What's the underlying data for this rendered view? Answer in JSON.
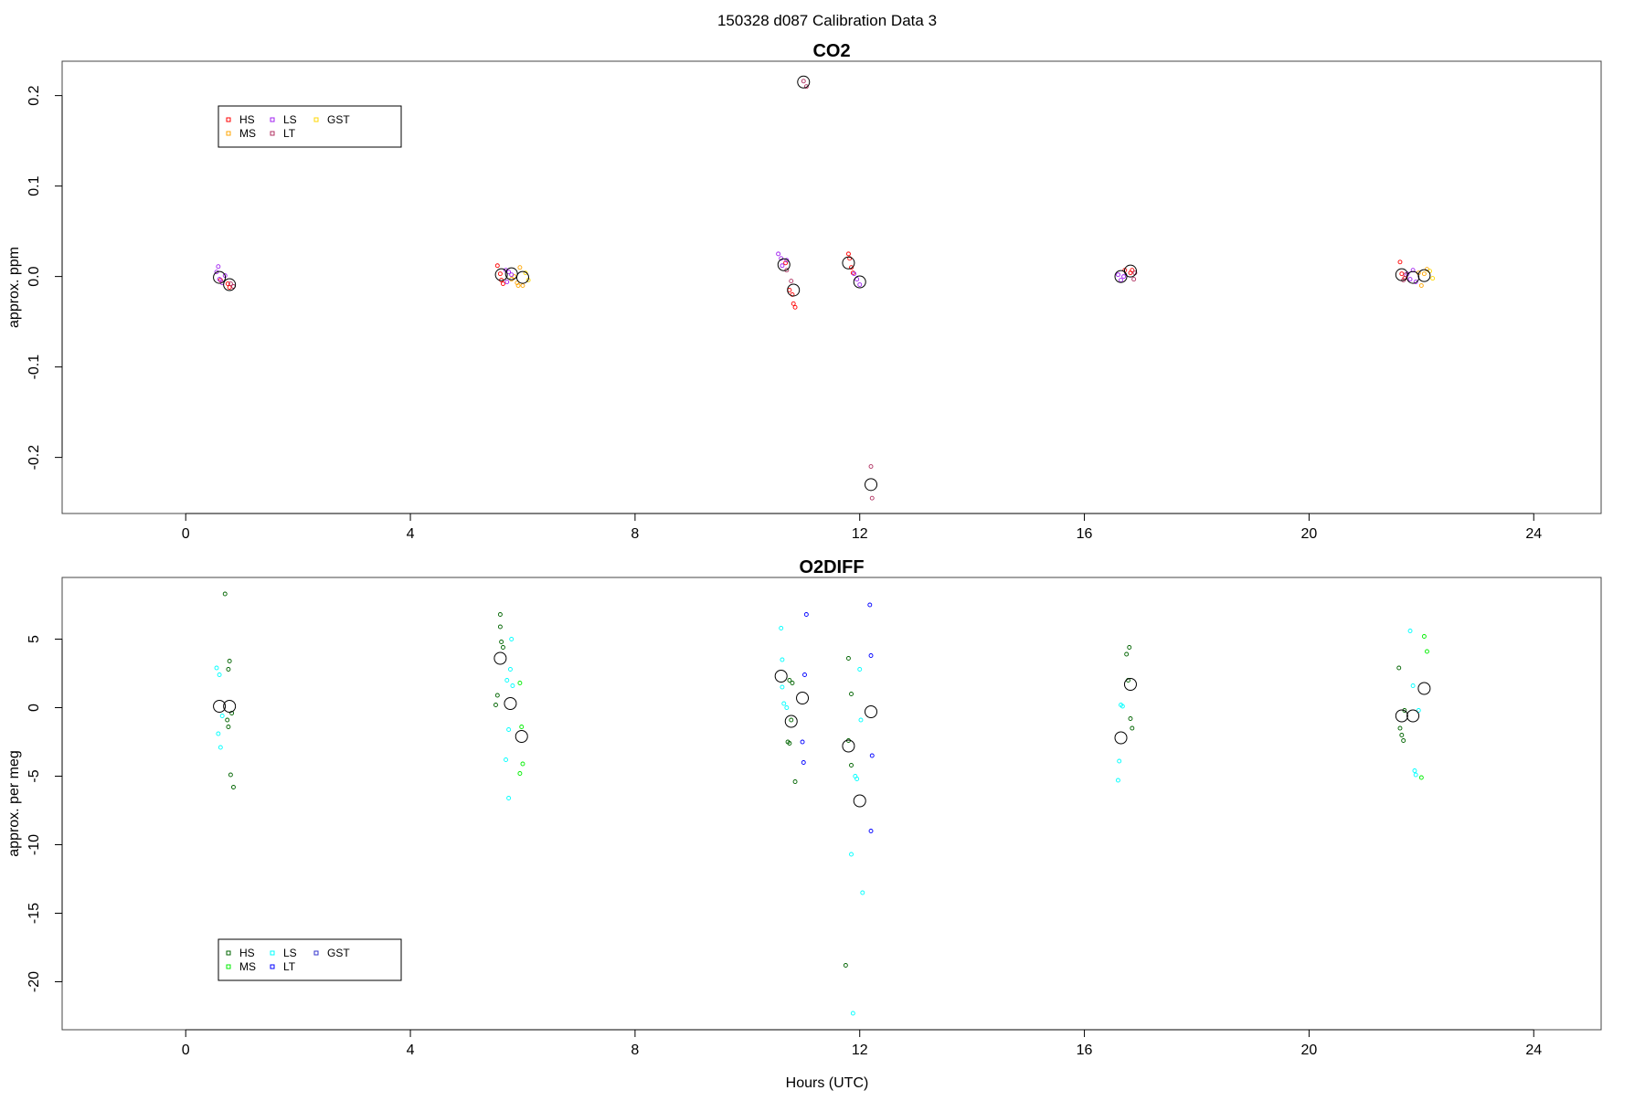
{
  "figure": {
    "suptitle": "150328   d087   Calibration Data 3",
    "xlabel": "Hours (UTC)"
  },
  "chart_data": [
    {
      "type": "scatter",
      "title": "CO2",
      "xlabel": "",
      "ylabel": "approx. ppm",
      "xlim": [
        -2.2,
        25.2
      ],
      "ylim": [
        -0.262,
        0.238
      ],
      "xticks": [
        0,
        4,
        8,
        12,
        16,
        20,
        24
      ],
      "yticks": [
        -0.2,
        -0.1,
        0.0,
        0.1,
        0.2
      ],
      "ytick_labels": [
        "-0.2",
        "-0.1",
        "0.0",
        "0.1",
        "0.2"
      ],
      "grid": false,
      "legend": {
        "placement": "top-left",
        "entries": [
          {
            "label": "HS",
            "color": "#ff0000"
          },
          {
            "label": "MS",
            "color": "#ffa500"
          },
          {
            "label": "LS",
            "color": "#a020f0"
          },
          {
            "label": "LT",
            "color": "#b03060"
          },
          {
            "label": "GST",
            "color": "#ffd700"
          }
        ]
      },
      "series": [
        {
          "name": "HS",
          "color": "#ff0000",
          "points": [
            [
              0.62,
              -0.004
            ],
            [
              0.75,
              -0.008
            ],
            [
              0.78,
              -0.012
            ],
            [
              5.55,
              0.012
            ],
            [
              5.6,
              0.003
            ],
            [
              5.62,
              -0.004
            ],
            [
              5.65,
              -0.008
            ],
            [
              10.75,
              -0.015
            ],
            [
              10.8,
              -0.02
            ],
            [
              10.82,
              -0.03
            ],
            [
              10.85,
              -0.034
            ],
            [
              10.68,
              0.015
            ],
            [
              11.8,
              0.025
            ],
            [
              11.82,
              0.02
            ],
            [
              11.85,
              0.01
            ],
            [
              11.88,
              0.004
            ],
            [
              16.72,
              0.007
            ],
            [
              16.82,
              0.004
            ],
            [
              16.85,
              0.007
            ],
            [
              21.62,
              0.016
            ],
            [
              21.65,
              0.003
            ],
            [
              21.7,
              -0.002
            ]
          ]
        },
        {
          "name": "MS",
          "color": "#ffa500",
          "points": [
            [
              5.8,
              -0.003
            ],
            [
              5.85,
              0.0
            ],
            [
              5.9,
              -0.007
            ],
            [
              5.95,
              0.01
            ],
            [
              6.0,
              -0.01
            ],
            [
              5.92,
              -0.01
            ],
            [
              22.0,
              -0.01
            ],
            [
              22.05,
              0.003
            ],
            [
              22.1,
              0.008
            ],
            [
              21.95,
              0.004
            ]
          ]
        },
        {
          "name": "LS",
          "color": "#a020f0",
          "points": [
            [
              0.55,
              0.005
            ],
            [
              0.58,
              0.011
            ],
            [
              0.6,
              -0.003
            ],
            [
              0.65,
              -0.007
            ],
            [
              0.7,
              0.001
            ],
            [
              5.7,
              0.007
            ],
            [
              5.75,
              0.005
            ],
            [
              5.8,
              0.002
            ],
            [
              5.72,
              -0.006
            ],
            [
              10.55,
              0.025
            ],
            [
              10.6,
              0.02
            ],
            [
              10.62,
              0.012
            ],
            [
              10.7,
              0.018
            ],
            [
              11.9,
              0.003
            ],
            [
              11.95,
              -0.003
            ],
            [
              12.0,
              -0.009
            ],
            [
              16.6,
              0.002
            ],
            [
              16.65,
              -0.004
            ],
            [
              16.7,
              0.0
            ],
            [
              21.75,
              0.003
            ],
            [
              21.8,
              -0.003
            ],
            [
              21.85,
              0.007
            ],
            [
              21.9,
              -0.006
            ]
          ]
        },
        {
          "name": "LT",
          "color": "#b03060",
          "points": [
            [
              0.8,
              -0.008
            ],
            [
              0.85,
              -0.011
            ],
            [
              10.7,
              0.007
            ],
            [
              10.78,
              -0.005
            ],
            [
              11.05,
              0.21
            ],
            [
              11.0,
              0.216
            ],
            [
              12.2,
              -0.21
            ],
            [
              12.22,
              -0.245
            ],
            [
              16.88,
              -0.003
            ],
            [
              16.9,
              0.004
            ],
            [
              21.68,
              -0.004
            ],
            [
              21.72,
              0.002
            ]
          ]
        },
        {
          "name": "GST",
          "color": "#ffd700",
          "points": [
            [
              6.05,
              0.004
            ],
            [
              6.1,
              -0.004
            ],
            [
              22.15,
              0.006
            ],
            [
              22.2,
              -0.002
            ]
          ]
        },
        {
          "name": "",
          "color": "#000000",
          "marker": "large",
          "points": [
            [
              0.6,
              -0.001
            ],
            [
              0.78,
              -0.009
            ],
            [
              5.62,
              0.002
            ],
            [
              5.8,
              0.003
            ],
            [
              6.0,
              -0.001
            ],
            [
              10.65,
              0.013
            ],
            [
              10.82,
              -0.015
            ],
            [
              11.0,
              0.215
            ],
            [
              11.8,
              0.015
            ],
            [
              12.0,
              -0.006
            ],
            [
              12.2,
              -0.23
            ],
            [
              16.65,
              0.0
            ],
            [
              16.82,
              0.006
            ],
            [
              21.65,
              0.002
            ],
            [
              21.85,
              -0.001
            ],
            [
              22.05,
              0.001
            ]
          ]
        }
      ]
    },
    {
      "type": "scatter",
      "title": "O2DIFF",
      "xlabel": "Hours (UTC)",
      "ylabel": "approx. per meg",
      "xlim": [
        -2.2,
        25.2
      ],
      "ylim": [
        -23.5,
        9.5
      ],
      "xticks": [
        0,
        4,
        8,
        12,
        16,
        20,
        24
      ],
      "yticks": [
        -20,
        -15,
        -10,
        -5,
        0,
        5
      ],
      "ytick_labels": [
        "-20",
        "-15",
        "-10",
        "-5",
        "0",
        "5"
      ],
      "grid": false,
      "legend": {
        "placement": "bottom-left",
        "entries": [
          {
            "label": "HS",
            "color": "#006400"
          },
          {
            "label": "MS",
            "color": "#00ee00"
          },
          {
            "label": "LS",
            "color": "#00ffff"
          },
          {
            "label": "LT",
            "color": "#0000ff"
          },
          {
            "label": "GST",
            "color": "#3333cc"
          }
        ]
      },
      "series": [
        {
          "name": "HS",
          "color": "#006400",
          "points": [
            [
              0.7,
              8.3
            ],
            [
              0.78,
              3.4
            ],
            [
              0.76,
              2.8
            ],
            [
              0.82,
              -0.4
            ],
            [
              0.74,
              -0.9
            ],
            [
              0.76,
              -1.4
            ],
            [
              0.8,
              -4.9
            ],
            [
              0.85,
              -5.8
            ],
            [
              5.6,
              6.8
            ],
            [
              5.6,
              5.9
            ],
            [
              5.62,
              4.8
            ],
            [
              5.65,
              4.4
            ],
            [
              5.55,
              0.9
            ],
            [
              5.52,
              0.2
            ],
            [
              10.75,
              2.0
            ],
            [
              10.8,
              1.8
            ],
            [
              10.72,
              -2.5
            ],
            [
              10.75,
              -2.6
            ],
            [
              10.85,
              -5.4
            ],
            [
              10.78,
              -0.9
            ],
            [
              11.75,
              -18.8
            ],
            [
              11.8,
              3.6
            ],
            [
              11.85,
              1.0
            ],
            [
              11.8,
              -2.4
            ],
            [
              11.85,
              -4.2
            ],
            [
              16.8,
              4.4
            ],
            [
              16.75,
              3.9
            ],
            [
              16.78,
              2.0
            ],
            [
              16.82,
              -0.8
            ],
            [
              16.85,
              -1.5
            ],
            [
              21.6,
              2.9
            ],
            [
              21.62,
              -1.5
            ],
            [
              21.65,
              -2.0
            ],
            [
              21.68,
              -2.4
            ],
            [
              21.7,
              -0.2
            ]
          ]
        },
        {
          "name": "MS",
          "color": "#00ee00",
          "points": [
            [
              5.95,
              1.8
            ],
            [
              5.98,
              -1.4
            ],
            [
              6.0,
              -4.1
            ],
            [
              5.95,
              -4.8
            ],
            [
              22.05,
              5.2
            ],
            [
              22.1,
              4.1
            ],
            [
              22.0,
              -5.1
            ]
          ]
        },
        {
          "name": "LS",
          "color": "#00ffff",
          "points": [
            [
              0.55,
              2.9
            ],
            [
              0.6,
              2.4
            ],
            [
              0.58,
              -1.9
            ],
            [
              0.62,
              -2.9
            ],
            [
              0.65,
              -0.6
            ],
            [
              5.8,
              5.0
            ],
            [
              5.78,
              2.8
            ],
            [
              5.72,
              2.0
            ],
            [
              5.82,
              1.6
            ],
            [
              5.75,
              -1.6
            ],
            [
              5.7,
              -3.8
            ],
            [
              5.75,
              -6.6
            ],
            [
              10.6,
              5.8
            ],
            [
              10.62,
              3.5
            ],
            [
              10.65,
              0.3
            ],
            [
              10.7,
              0.0
            ],
            [
              10.62,
              1.5
            ],
            [
              11.85,
              -10.7
            ],
            [
              11.88,
              -22.3
            ],
            [
              11.92,
              -5.0
            ],
            [
              11.95,
              -5.2
            ],
            [
              12.0,
              2.8
            ],
            [
              12.05,
              -13.5
            ],
            [
              12.02,
              -0.9
            ],
            [
              16.6,
              -5.3
            ],
            [
              16.62,
              -3.9
            ],
            [
              16.65,
              0.2
            ],
            [
              16.68,
              0.1
            ],
            [
              21.8,
              5.6
            ],
            [
              21.85,
              1.6
            ],
            [
              21.88,
              -4.6
            ],
            [
              21.9,
              -4.9
            ],
            [
              21.95,
              -0.2
            ]
          ]
        },
        {
          "name": "LT",
          "color": "#0000ff",
          "points": [
            [
              11.05,
              6.8
            ],
            [
              11.02,
              2.4
            ],
            [
              10.98,
              -2.5
            ],
            [
              11.0,
              -4.0
            ],
            [
              12.18,
              7.5
            ],
            [
              12.2,
              3.8
            ],
            [
              12.22,
              -3.5
            ],
            [
              12.2,
              -9.0
            ]
          ]
        },
        {
          "name": "",
          "color": "#000000",
          "marker": "large",
          "points": [
            [
              0.6,
              0.1
            ],
            [
              0.78,
              0.1
            ],
            [
              5.6,
              3.6
            ],
            [
              5.78,
              0.3
            ],
            [
              5.98,
              -2.1
            ],
            [
              10.6,
              2.3
            ],
            [
              10.78,
              -1.0
            ],
            [
              10.98,
              0.7
            ],
            [
              11.8,
              -2.8
            ],
            [
              12.0,
              -6.8
            ],
            [
              12.2,
              -0.3
            ],
            [
              16.65,
              -2.2
            ],
            [
              16.82,
              1.7
            ],
            [
              21.65,
              -0.6
            ],
            [
              21.85,
              -0.6
            ],
            [
              22.05,
              1.4
            ]
          ]
        }
      ]
    }
  ]
}
